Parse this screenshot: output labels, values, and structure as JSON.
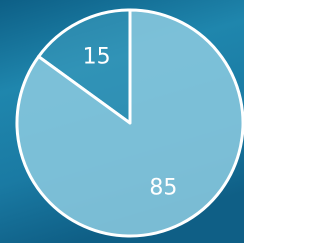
{
  "chart_data": {
    "type": "pie",
    "values": [
      15,
      85
    ],
    "colors": [
      "#3f9fc0",
      "#86c7dd"
    ]
  }
}
